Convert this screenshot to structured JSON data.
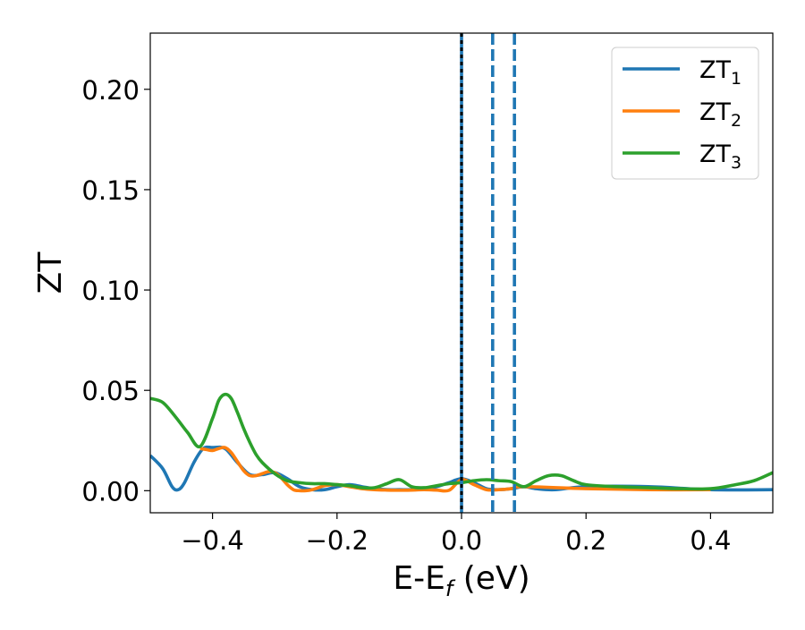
{
  "chart_data": {
    "type": "line",
    "title": "",
    "xlabel": "E-E",
    "xlabel_subscript": "f",
    "xlabel_suffix": " (eV)",
    "ylabel": "ZT",
    "xlim": [
      -0.5,
      0.5
    ],
    "ylim": [
      -0.011,
      0.228
    ],
    "grid": false,
    "legend_position": "top-right",
    "xticks": [
      -0.4,
      -0.2,
      0.0,
      0.2,
      0.4
    ],
    "xtick_labels": [
      "−0.4",
      "−0.2",
      "0.0",
      "0.2",
      "0.4"
    ],
    "yticks": [
      0.0,
      0.05,
      0.1,
      0.15,
      0.2
    ],
    "ytick_labels": [
      "0.00",
      "0.05",
      "0.10",
      "0.15",
      "0.20"
    ],
    "series": [
      {
        "name": "ZT",
        "name_subscript": "1",
        "color": "#1f77b4",
        "x": [
          -0.5,
          -0.48,
          -0.465,
          -0.455,
          -0.445,
          -0.43,
          -0.415,
          -0.4,
          -0.38,
          -0.36,
          -0.34,
          -0.32,
          -0.3,
          -0.28,
          -0.26,
          -0.24,
          -0.22,
          -0.2,
          -0.18,
          -0.16,
          -0.14,
          -0.12,
          -0.1,
          -0.08,
          -0.06,
          -0.04,
          -0.02,
          0.0,
          0.02,
          0.04,
          0.06,
          0.08,
          0.1,
          0.12,
          0.15,
          0.2,
          0.3,
          0.4,
          0.5
        ],
        "y": [
          0.0175,
          0.011,
          0.002,
          0.0005,
          0.004,
          0.014,
          0.021,
          0.0215,
          0.021,
          0.014,
          0.008,
          0.008,
          0.009,
          0.006,
          0.002,
          0.0005,
          0.0005,
          0.002,
          0.003,
          0.002,
          0.001,
          0.0005,
          0.0005,
          0.0005,
          0.001,
          0.002,
          0.004,
          0.006,
          0.004,
          0.001,
          0.0005,
          0.001,
          0.002,
          0.001,
          0.0005,
          0.002,
          0.002,
          0.0005,
          0.0005
        ]
      },
      {
        "name": "ZT",
        "name_subscript": "2",
        "color": "#ff7f0e",
        "x": [
          -0.42,
          -0.41,
          -0.4,
          -0.39,
          -0.38,
          -0.37,
          -0.36,
          -0.35,
          -0.34,
          -0.33,
          -0.32,
          -0.31,
          -0.3,
          -0.29,
          -0.28,
          -0.27,
          -0.26,
          -0.25,
          -0.24,
          -0.23,
          -0.22,
          -0.2,
          -0.18,
          -0.16,
          -0.14,
          -0.12,
          -0.1,
          -0.08,
          -0.06,
          -0.04,
          -0.02,
          0.0,
          0.02,
          0.04,
          0.06,
          0.08,
          0.1,
          0.2,
          0.3,
          0.4
        ],
        "y": [
          0.021,
          0.0205,
          0.02,
          0.021,
          0.0215,
          0.019,
          0.0145,
          0.01,
          0.0075,
          0.0075,
          0.0085,
          0.0095,
          0.009,
          0.0065,
          0.003,
          0.0005,
          0.0,
          0.0,
          0.0005,
          0.0015,
          0.0025,
          0.003,
          0.002,
          0.001,
          0.0005,
          0.0003,
          0.0002,
          0.0003,
          0.0005,
          0.0003,
          0.0002,
          0.0055,
          0.003,
          0.0005,
          0.0005,
          0.001,
          0.002,
          0.001,
          0.0005,
          0.0005
        ]
      },
      {
        "name": "ZT",
        "name_subscript": "3",
        "color": "#2ca02c",
        "x": [
          -0.5,
          -0.48,
          -0.46,
          -0.44,
          -0.42,
          -0.4,
          -0.39,
          -0.38,
          -0.37,
          -0.36,
          -0.35,
          -0.34,
          -0.33,
          -0.32,
          -0.3,
          -0.28,
          -0.26,
          -0.24,
          -0.22,
          -0.2,
          -0.18,
          -0.16,
          -0.14,
          -0.12,
          -0.1,
          -0.08,
          -0.06,
          -0.04,
          -0.02,
          0.0,
          0.02,
          0.04,
          0.06,
          0.08,
          0.1,
          0.12,
          0.14,
          0.16,
          0.18,
          0.2,
          0.25,
          0.3,
          0.35,
          0.4,
          0.44,
          0.47,
          0.5
        ],
        "y": [
          0.046,
          0.044,
          0.037,
          0.029,
          0.022,
          0.036,
          0.045,
          0.048,
          0.046,
          0.039,
          0.031,
          0.024,
          0.018,
          0.014,
          0.0085,
          0.005,
          0.004,
          0.0035,
          0.0035,
          0.003,
          0.0025,
          0.0015,
          0.0015,
          0.0035,
          0.0055,
          0.002,
          0.0015,
          0.0025,
          0.0035,
          0.004,
          0.005,
          0.0055,
          0.005,
          0.0045,
          0.002,
          0.005,
          0.0075,
          0.0075,
          0.005,
          0.003,
          0.002,
          0.0015,
          0.001,
          0.001,
          0.003,
          0.005,
          0.009
        ]
      }
    ],
    "vertical_lines": [
      {
        "x": 0.0,
        "style": "solid",
        "color": "#1f77b4",
        "overlay": "dotted-black"
      },
      {
        "x": 0.05,
        "style": "dashed",
        "color": "#1f77b4"
      },
      {
        "x": 0.085,
        "style": "dashed",
        "color": "#1f77b4"
      }
    ]
  }
}
